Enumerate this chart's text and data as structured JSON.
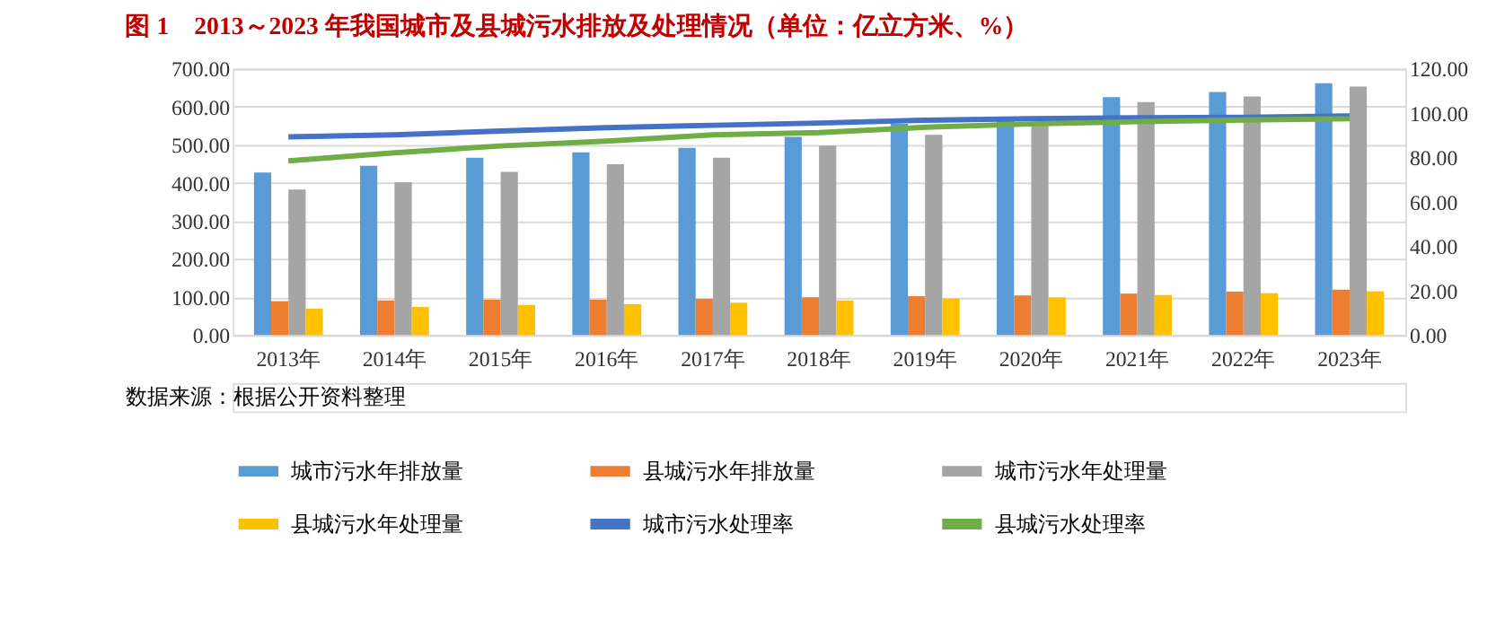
{
  "chart_data": {
    "type": "bar",
    "title": "图 1　2013～2023 年我国城市及县城污水排放及处理情况（单位：亿立方米、%）",
    "categories": [
      "2013年",
      "2014年",
      "2015年",
      "2016年",
      "2017年",
      "2018年",
      "2019年",
      "2020年",
      "2021年",
      "2022年",
      "2023年"
    ],
    "series": [
      {
        "name": "城市污水年排放量",
        "color": "#5b9bd5",
        "values": [
          427,
          445,
          466,
          480,
          492,
          521,
          555,
          571,
          625,
          639,
          662
        ]
      },
      {
        "name": "县城污水年排放量",
        "color": "#ed7d31",
        "values": [
          89,
          91,
          93,
          93,
          95,
          99,
          102,
          104,
          109,
          114,
          119
        ]
      },
      {
        "name": "城市污水年处理量",
        "color": "#a5a5a5",
        "values": [
          382,
          402,
          429,
          449,
          466,
          498,
          526,
          557,
          612,
          627,
          653
        ]
      },
      {
        "name": "县城污水年处理量",
        "color": "#ffc000",
        "values": [
          69,
          74,
          79,
          81,
          85,
          91,
          96,
          99,
          105,
          110,
          115
        ]
      },
      {
        "name": "城市污水处理率",
        "color": "#4472c4",
        "type": "line",
        "axis": "y2",
        "values": [
          89.3,
          90.2,
          91.9,
          93.4,
          94.5,
          95.5,
          96.8,
          97.5,
          97.9,
          98.1,
          98.7
        ]
      },
      {
        "name": "县城污水处理率",
        "color": "#70ad47",
        "type": "line",
        "axis": "y2",
        "values": [
          78.5,
          82.1,
          85.2,
          87.4,
          90.2,
          91.2,
          93.6,
          95.1,
          96.1,
          96.9,
          97.5
        ]
      }
    ],
    "ylim": [
      0,
      700
    ],
    "yticks": [
      {
        "value": 0,
        "label": "0.00"
      },
      {
        "value": 100,
        "label": "100.00"
      },
      {
        "value": 200,
        "label": "200.00"
      },
      {
        "value": 300,
        "label": "300.00"
      },
      {
        "value": 400,
        "label": "400.00"
      },
      {
        "value": 500,
        "label": "500.00"
      },
      {
        "value": 600,
        "label": "600.00"
      },
      {
        "value": 700,
        "label": "700.00"
      }
    ],
    "y2lim": [
      0,
      120
    ],
    "y2ticks": [
      {
        "value": 0,
        "label": "0.00"
      },
      {
        "value": 20,
        "label": "20.00"
      },
      {
        "value": 40,
        "label": "40.00"
      },
      {
        "value": 60,
        "label": "60.00"
      },
      {
        "value": 80,
        "label": "80.00"
      },
      {
        "value": 100,
        "label": "100.00"
      },
      {
        "value": 120,
        "label": "120.00"
      }
    ],
    "grid": "y",
    "legend": "bottom",
    "marker": "none",
    "line_style": "solid",
    "annotations": [
      "数据来源：根据公开资料整理"
    ]
  }
}
